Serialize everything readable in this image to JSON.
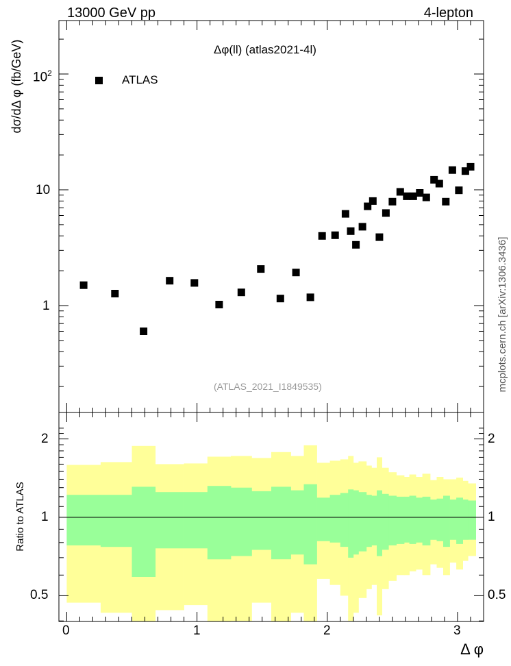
{
  "header": {
    "energy_label": "13000 GeV pp",
    "process_label": "4-lepton"
  },
  "side_label": "mcplots.cern.ch [arXiv:1306.3436]",
  "chart_data": [
    {
      "type": "scatter",
      "title": "Δφ(ll) (atlas2021-4l)",
      "watermark": "(ATLAS_2021_I1849535)",
      "ylabel": "dσ/dΔ φ (fb/GeV)",
      "xlabel": "Δ φ",
      "y_scale": "log",
      "xlim": [
        -0.06,
        3.2
      ],
      "ylim": [
        0.15,
        300
      ],
      "y_tick_labels": [
        "1",
        "10",
        "10^2"
      ],
      "legend": {
        "position": "top-left",
        "entries": [
          "ATLAS"
        ]
      },
      "series": [
        {
          "name": "ATLAS",
          "marker": "square",
          "color": "#000000",
          "x": [
            0.13,
            0.37,
            0.59,
            0.79,
            0.98,
            1.17,
            1.34,
            1.49,
            1.64,
            1.76,
            1.87,
            1.96,
            2.06,
            2.14,
            2.18,
            2.22,
            2.27,
            2.31,
            2.35,
            2.4,
            2.45,
            2.5,
            2.56,
            2.61,
            2.66,
            2.71,
            2.76,
            2.82,
            2.86,
            2.91,
            2.96,
            3.01,
            3.06,
            3.1
          ],
          "y": [
            1.5,
            1.27,
            0.6,
            1.64,
            1.57,
            1.02,
            1.3,
            2.07,
            1.15,
            1.93,
            1.18,
            4.0,
            4.05,
            6.2,
            4.4,
            3.35,
            4.8,
            7.2,
            8.0,
            3.9,
            6.3,
            7.9,
            9.6,
            8.8,
            8.8,
            9.4,
            8.6,
            12.2,
            11.3,
            7.9,
            14.8,
            9.9,
            14.5,
            15.8
          ]
        }
      ]
    },
    {
      "type": "area",
      "ylabel": "Ratio to ATLAS",
      "xlabel": "Δ φ",
      "xlim": [
        -0.06,
        3.2
      ],
      "ylim": [
        0.35,
        2.3
      ],
      "x_ticks": [
        0,
        1,
        2,
        3
      ],
      "y_ticks": [
        0.5,
        1,
        2
      ],
      "reference_line": 1,
      "bins": [
        0.0,
        0.26,
        0.5,
        0.68,
        0.9,
        1.08,
        1.26,
        1.42,
        1.57,
        1.72,
        1.82,
        1.92,
        2.02,
        2.1,
        2.16,
        2.2,
        2.24,
        2.3,
        2.34,
        2.38,
        2.42,
        2.47,
        2.53,
        2.59,
        2.63,
        2.68,
        2.73,
        2.79,
        2.84,
        2.89,
        2.94,
        2.99,
        3.04,
        3.08,
        3.14
      ],
      "series": [
        {
          "band": "inner",
          "color": "#99ff99",
          "lo": [
            0.78,
            0.77,
            0.59,
            0.76,
            0.76,
            0.69,
            0.71,
            0.75,
            0.69,
            0.72,
            0.66,
            0.81,
            0.8,
            0.77,
            0.7,
            0.72,
            0.74,
            0.77,
            0.78,
            0.71,
            0.75,
            0.78,
            0.79,
            0.8,
            0.79,
            0.8,
            0.78,
            0.82,
            0.81,
            0.77,
            0.82,
            0.79,
            0.82,
            0.82
          ],
          "hi": [
            1.22,
            1.22,
            1.31,
            1.25,
            1.25,
            1.32,
            1.3,
            1.26,
            1.31,
            1.27,
            1.34,
            1.19,
            1.22,
            1.24,
            1.28,
            1.27,
            1.25,
            1.22,
            1.21,
            1.27,
            1.23,
            1.21,
            1.2,
            1.2,
            1.21,
            1.19,
            1.2,
            1.17,
            1.18,
            1.21,
            1.17,
            1.19,
            1.17,
            1.16
          ]
        },
        {
          "band": "outer",
          "color": "#ffff99",
          "lo": [
            0.47,
            0.43,
            0.28,
            0.44,
            0.46,
            0.37,
            0.4,
            0.47,
            0.37,
            0.43,
            0.32,
            0.58,
            0.55,
            0.5,
            0.4,
            0.43,
            0.49,
            0.53,
            0.55,
            0.42,
            0.53,
            0.57,
            0.6,
            0.6,
            0.62,
            0.63,
            0.6,
            0.66,
            0.64,
            0.6,
            0.67,
            0.63,
            0.68,
            0.71
          ],
          "hi": [
            1.59,
            1.63,
            1.88,
            1.6,
            1.61,
            1.71,
            1.72,
            1.69,
            1.78,
            1.72,
            1.89,
            1.62,
            1.65,
            1.67,
            1.72,
            1.62,
            1.64,
            1.58,
            1.55,
            1.7,
            1.55,
            1.49,
            1.45,
            1.43,
            1.46,
            1.43,
            1.47,
            1.39,
            1.43,
            1.4,
            1.4,
            1.42,
            1.38,
            1.35
          ]
        }
      ]
    }
  ]
}
